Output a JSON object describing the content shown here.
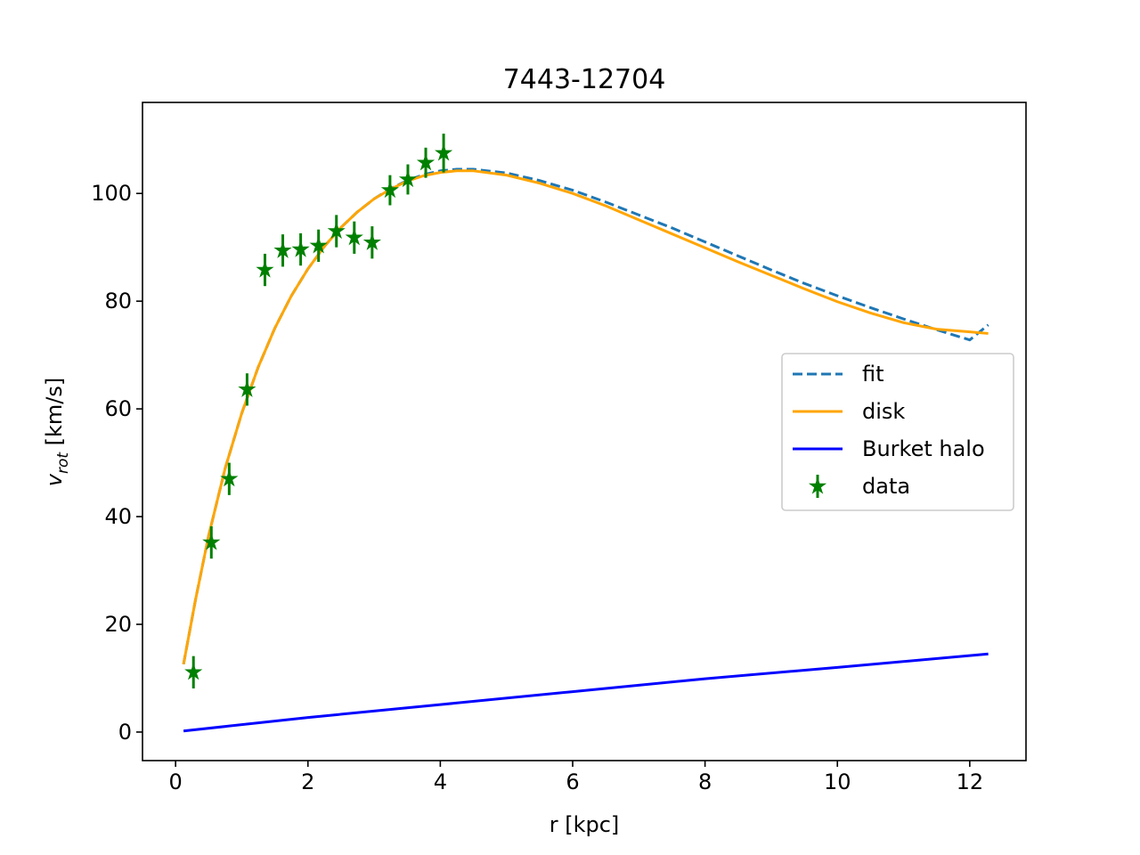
{
  "chart_data": {
    "type": "line",
    "title": "7443-12704",
    "xlabel": "r [kpc]",
    "ylabel_main": "v",
    "ylabel_sub": "rot",
    "ylabel_unit": " [km/s]",
    "xlim": [
      -0.5,
      12.85
    ],
    "ylim": [
      -5.3,
      116.9
    ],
    "x_ticks": [
      0,
      2,
      4,
      6,
      8,
      10,
      12
    ],
    "y_ticks": [
      0,
      20,
      40,
      60,
      80,
      100
    ],
    "grid": false,
    "legend_position": "center-right",
    "series": [
      {
        "name": "fit",
        "style": "dashed",
        "color": "#1f77b4",
        "x": [
          0.12,
          0.3,
          0.5,
          0.75,
          1.0,
          1.25,
          1.5,
          1.75,
          2.0,
          2.25,
          2.5,
          2.75,
          3.0,
          3.25,
          3.5,
          3.75,
          4.0,
          4.25,
          4.5,
          5.0,
          5.5,
          6.0,
          6.5,
          7.0,
          7.5,
          8.0,
          8.5,
          9.0,
          9.5,
          10.0,
          10.5,
          11.0,
          11.5,
          12.0,
          12.28
        ],
        "y": [
          12.6,
          24.5,
          36.5,
          49.0,
          59.2,
          67.8,
          75.0,
          81.0,
          86.0,
          90.2,
          93.7,
          96.6,
          99.0,
          100.9,
          102.4,
          103.5,
          104.2,
          104.5,
          104.5,
          103.8,
          102.4,
          100.6,
          98.4,
          96.0,
          93.6,
          91.0,
          88.4,
          85.8,
          83.3,
          81.0,
          78.8,
          76.7,
          74.7,
          72.8,
          75.6
        ]
      },
      {
        "name": "disk",
        "style": "solid",
        "color": "#ffa500",
        "x": [
          0.12,
          0.3,
          0.5,
          0.75,
          1.0,
          1.25,
          1.5,
          1.75,
          2.0,
          2.25,
          2.5,
          2.75,
          3.0,
          3.25,
          3.5,
          3.75,
          4.0,
          4.25,
          4.5,
          5.0,
          5.5,
          6.0,
          6.5,
          7.0,
          7.5,
          8.0,
          8.5,
          9.0,
          9.5,
          10.0,
          10.5,
          11.0,
          11.5,
          12.0,
          12.28
        ],
        "y": [
          12.6,
          24.5,
          36.5,
          49.0,
          59.2,
          67.8,
          75.0,
          81.0,
          86.0,
          90.2,
          93.7,
          96.6,
          99.0,
          100.8,
          102.3,
          103.3,
          103.9,
          104.2,
          104.2,
          103.4,
          101.9,
          100.0,
          97.7,
          95.1,
          92.5,
          89.9,
          87.3,
          84.8,
          82.3,
          79.9,
          77.8,
          76.0,
          74.8,
          74.3,
          74.0
        ]
      },
      {
        "name": "Burket halo",
        "style": "solid",
        "color": "#0000ff",
        "x": [
          0.12,
          2.0,
          4.0,
          6.0,
          8.0,
          10.0,
          12.28
        ],
        "y": [
          0.2,
          2.7,
          5.1,
          7.5,
          9.9,
          12.0,
          14.5
        ]
      },
      {
        "name": "data",
        "style": "errorbar-star",
        "color": "#008000",
        "x": [
          0.27,
          0.54,
          0.81,
          1.08,
          1.35,
          1.62,
          1.89,
          2.16,
          2.43,
          2.7,
          2.97,
          3.24,
          3.51,
          3.78,
          4.05
        ],
        "y": [
          11.1,
          35.2,
          47.0,
          63.6,
          85.8,
          89.4,
          89.6,
          90.3,
          93.0,
          91.8,
          90.9,
          100.6,
          102.6,
          105.7,
          107.5
        ],
        "yerr": [
          3.0,
          3.0,
          3.0,
          3.0,
          3.0,
          3.0,
          3.0,
          3.0,
          3.0,
          3.0,
          3.0,
          2.8,
          2.8,
          2.8,
          3.6
        ]
      }
    ]
  }
}
